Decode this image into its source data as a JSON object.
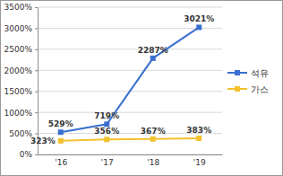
{
  "chart_data": {
    "type": "line",
    "categories": [
      "'16",
      "'17",
      "'18",
      "'19"
    ],
    "series": [
      {
        "name": "석유",
        "color": "#3a6fcf",
        "marker": "square",
        "values": [
          529,
          719,
          2287,
          3021
        ],
        "value_labels": [
          "529%",
          "719%",
          "2287%",
          "3021%"
        ]
      },
      {
        "name": "가스",
        "color": "#f2c12e",
        "marker": "square",
        "values": [
          323,
          356,
          367,
          383
        ],
        "value_labels": [
          "323%",
          "356%",
          "367%",
          "383%"
        ]
      }
    ],
    "ylim": [
      0,
      3500
    ],
    "yticks": [
      {
        "value": 0,
        "label": "0%"
      },
      {
        "value": 500,
        "label": "500%"
      },
      {
        "value": 1000,
        "label": "1000%"
      },
      {
        "value": 1500,
        "label": "1500%"
      },
      {
        "value": 2000,
        "label": "2000%"
      },
      {
        "value": 2500,
        "label": "2500%"
      },
      {
        "value": 3000,
        "label": "3000%"
      },
      {
        "value": 3500,
        "label": "3500%"
      }
    ],
    "grid": true,
    "legend": "right",
    "data_labels": true
  }
}
